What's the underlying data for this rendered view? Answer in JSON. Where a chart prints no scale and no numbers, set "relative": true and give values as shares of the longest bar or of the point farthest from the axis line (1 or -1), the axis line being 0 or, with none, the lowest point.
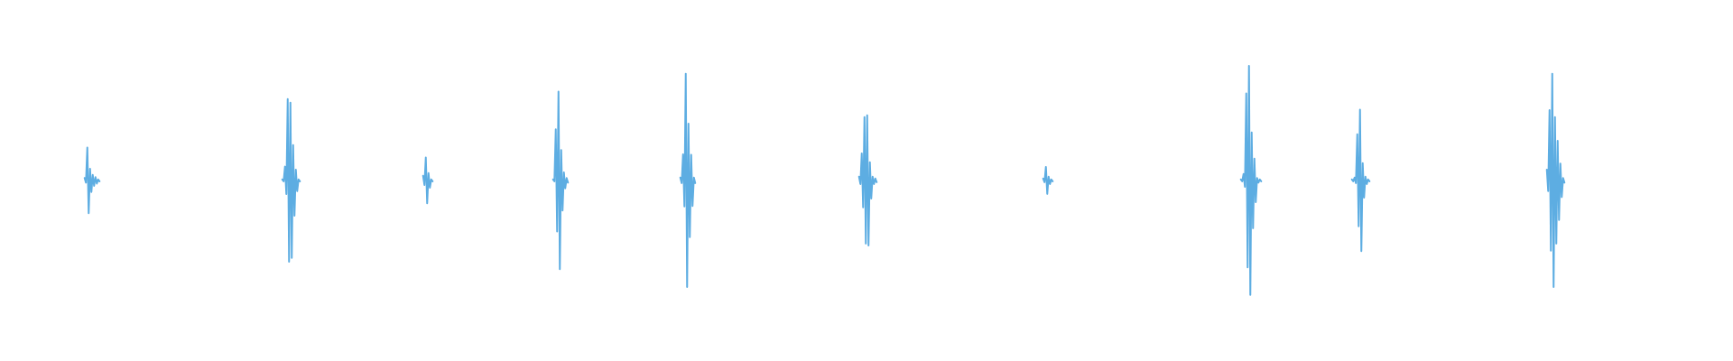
{
  "chart_data": {
    "type": "line",
    "relative": true,
    "color": "#5dade2",
    "categories": [
      null,
      null,
      null,
      null,
      null,
      null,
      null,
      null,
      null,
      null,
      null,
      null,
      null,
      null,
      null,
      null,
      null,
      null,
      null,
      null,
      null,
      null,
      null,
      null,
      null,
      null,
      null,
      null,
      null,
      null,
      null,
      null,
      null,
      null,
      null,
      null,
      null,
      null,
      null,
      null,
      null,
      null,
      null,
      null,
      null,
      null,
      null,
      null,
      null,
      null,
      null,
      null,
      null,
      null,
      null,
      null,
      null,
      null,
      null,
      null,
      null,
      null,
      null,
      null,
      null,
      null,
      null,
      null,
      null,
      null,
      null,
      null,
      null,
      null,
      null,
      null,
      null,
      null,
      null,
      null,
      null,
      null,
      null,
      null,
      null,
      null,
      null,
      null,
      null,
      null,
      null,
      null,
      null,
      null,
      null,
      null,
      null,
      null,
      null,
      null,
      null,
      null,
      null,
      null,
      null,
      null,
      null,
      null,
      null,
      null,
      null,
      null,
      null,
      null,
      null,
      null,
      null,
      null,
      null,
      null,
      null,
      null,
      null,
      null,
      null,
      null,
      null,
      null,
      null,
      null,
      null,
      null,
      null,
      null,
      null,
      null,
      null,
      null,
      null,
      null,
      null,
      null,
      null,
      null,
      null,
      null,
      null,
      null,
      null,
      null,
      null,
      null,
      null,
      null,
      null,
      null,
      null,
      null,
      null,
      null,
      null,
      null,
      null,
      null,
      null,
      null,
      null,
      null,
      null,
      null,
      null,
      null,
      null,
      null,
      null,
      null,
      null,
      null,
      null,
      null,
      null,
      null,
      null,
      null,
      null,
      null,
      null,
      null,
      null,
      null,
      null,
      null,
      null,
      null,
      null,
      null,
      null,
      null,
      null,
      null,
      null,
      null,
      null,
      null,
      null,
      null,
      null,
      null,
      null,
      null,
      null,
      null,
      null,
      null,
      null,
      null,
      null,
      null,
      null,
      null,
      null,
      null,
      null,
      null,
      null,
      null,
      null,
      null,
      null,
      null,
      null,
      null,
      null,
      null,
      null,
      null,
      null,
      null,
      null,
      null,
      null,
      null,
      null,
      null,
      null,
      null,
      null,
      null,
      null,
      null,
      null,
      null,
      null,
      null,
      null,
      null,
      null,
      null,
      null,
      null,
      null,
      null,
      null,
      null,
      null,
      null,
      null,
      null,
      null,
      null,
      null,
      null,
      null,
      null,
      null,
      null,
      null,
      null,
      null,
      null,
      null,
      null,
      null,
      null,
      null,
      null,
      null,
      null,
      null,
      null,
      null,
      null,
      null,
      null,
      null,
      null,
      null,
      null,
      null,
      null,
      null,
      null,
      null,
      null,
      null,
      null,
      null,
      null,
      null,
      null,
      null,
      null,
      null,
      null,
      null,
      null,
      null,
      null,
      null,
      null,
      null,
      null,
      null,
      null,
      null,
      null,
      null,
      null,
      null,
      null,
      null,
      null,
      null,
      null,
      null,
      null,
      null,
      null,
      null,
      null,
      null,
      null,
      null,
      null,
      null,
      null,
      null,
      null,
      null,
      null,
      null,
      null,
      null,
      null,
      null,
      null,
      null,
      null,
      null,
      null,
      null,
      null,
      null,
      null,
      null,
      null,
      null,
      null,
      null,
      null,
      null,
      null,
      null,
      null,
      null,
      null,
      null,
      null,
      null,
      null,
      null,
      null,
      null,
      null,
      null,
      null,
      null,
      null,
      null,
      null,
      null,
      null,
      null,
      null,
      null,
      null,
      null,
      null,
      null,
      null,
      null,
      null,
      null,
      null,
      null,
      null,
      null,
      null,
      null,
      null,
      null,
      null,
      null,
      null,
      null,
      null,
      null,
      null,
      null,
      null,
      null,
      null,
      null,
      null,
      null,
      null,
      null,
      null,
      null,
      null,
      null,
      null,
      null,
      null,
      null,
      null,
      null,
      null,
      null,
      null,
      null,
      null,
      null,
      null,
      null,
      null,
      null,
      null,
      null,
      null,
      null,
      null,
      null,
      null,
      null,
      null,
      null,
      null,
      null,
      null,
      null,
      null,
      null,
      null,
      null,
      null,
      null,
      null,
      null,
      null,
      null,
      null,
      null,
      null,
      null,
      null,
      null,
      null,
      null,
      null,
      null,
      null,
      null,
      null,
      null,
      null,
      null,
      null,
      null,
      null,
      null,
      null,
      null,
      null,
      null,
      null,
      null,
      null,
      null,
      null,
      null,
      null,
      null,
      null,
      null,
      null,
      null,
      null,
      null,
      null,
      null,
      null,
      null,
      null,
      null,
      null,
      null,
      null,
      null,
      null,
      null,
      null,
      null,
      null,
      null,
      null,
      null,
      null,
      null,
      null,
      null,
      null,
      null,
      null,
      null,
      null,
      null,
      null,
      null,
      null,
      null,
      null,
      null,
      null,
      null,
      null,
      null,
      null,
      null,
      null,
      null,
      null,
      null,
      null,
      null,
      null,
      null,
      null,
      null,
      null,
      null,
      null,
      null,
      null,
      null,
      null,
      null,
      null,
      null,
      null,
      null,
      null,
      null,
      null,
      null,
      null,
      null,
      null,
      null,
      null,
      null,
      null,
      null,
      null,
      null,
      null,
      null,
      null,
      null,
      null,
      null,
      null,
      null,
      null,
      null,
      null,
      null,
      null,
      null,
      null,
      null,
      null,
      null,
      null,
      null,
      null,
      null,
      null,
      null,
      null,
      null,
      null,
      null,
      null,
      null,
      null,
      null,
      null,
      null,
      null,
      null,
      null,
      null,
      null,
      null,
      null,
      null,
      null,
      null,
      null,
      null,
      null,
      null,
      null,
      null,
      null,
      null,
      null,
      null,
      null,
      null,
      null,
      null,
      null,
      null,
      null,
      null,
      null,
      null,
      null,
      null,
      null,
      null,
      null,
      null,
      null,
      null,
      null,
      null,
      null,
      null,
      null,
      null,
      null,
      null,
      null,
      null,
      null,
      null,
      null,
      null,
      null,
      null,
      null,
      null,
      null,
      null,
      null,
      null,
      null,
      null,
      null,
      null,
      null,
      null,
      null,
      null,
      null,
      null,
      null,
      null,
      null,
      null,
      null,
      null,
      null,
      null,
      null,
      null,
      null,
      null,
      null,
      null,
      null,
      null,
      null,
      null,
      null,
      null,
      null,
      null,
      null,
      null,
      null,
      null,
      null,
      null,
      null,
      null,
      null,
      null,
      null,
      null,
      null,
      null,
      null,
      null,
      null,
      null,
      null,
      null,
      null,
      null,
      null,
      null,
      null,
      null,
      null,
      null,
      null,
      null,
      null,
      null,
      null,
      null,
      null,
      null,
      null,
      null,
      null,
      null,
      null,
      null,
      null,
      null,
      null,
      null,
      null,
      null,
      null,
      null,
      null,
      null,
      null,
      null,
      null,
      null,
      null,
      null,
      null,
      null,
      null,
      null,
      null,
      null,
      null,
      null,
      null,
      null,
      null,
      null,
      null,
      null,
      null,
      null,
      null,
      null,
      null,
      null,
      null,
      null,
      null,
      null,
      null,
      null,
      null,
      null,
      null,
      null,
      null,
      null,
      null,
      null,
      null,
      null,
      null,
      null,
      null,
      null,
      null,
      null,
      null,
      null,
      null,
      null,
      null,
      null,
      null,
      null,
      null,
      null,
      null,
      null,
      null,
      null,
      null,
      null,
      null,
      null,
      null,
      null,
      null,
      null,
      null,
      null,
      null,
      null,
      null,
      null,
      null,
      null,
      null,
      null,
      null,
      null,
      null,
      null,
      null,
      null,
      null,
      null,
      null,
      null,
      null,
      null,
      null,
      null,
      null,
      null,
      null,
      null,
      null,
      null,
      null,
      null,
      null,
      null,
      null,
      null,
      null,
      null,
      null,
      null,
      null,
      null,
      null,
      null,
      null,
      null,
      null,
      null,
      null,
      null,
      null,
      null,
      null,
      null,
      null,
      null,
      null,
      null,
      null,
      null,
      null,
      null,
      null,
      null,
      null,
      null,
      null,
      null,
      null,
      null,
      null,
      null,
      null,
      null,
      null,
      null,
      null,
      null,
      null,
      null,
      null,
      null,
      null,
      null,
      null,
      null,
      null,
      null,
      null,
      null,
      null,
      null,
      null,
      null,
      null,
      null,
      null,
      null,
      null,
      null,
      null,
      null,
      null,
      null,
      null,
      null,
      null,
      null,
      null,
      null,
      null,
      null,
      null,
      null,
      null,
      null,
      null,
      null,
      null,
      null,
      null,
      null,
      null,
      null,
      null,
      null,
      null,
      null,
      null,
      null,
      null,
      null,
      null,
      null,
      null,
      null,
      null,
      null,
      null,
      null,
      null,
      null,
      null,
      null,
      null,
      null,
      null,
      null,
      null,
      null,
      null,
      null,
      null,
      null,
      null,
      null,
      null,
      null,
      null,
      null,
      null,
      null,
      null,
      null,
      null,
      null,
      null,
      null,
      null,
      null,
      null,
      null,
      null,
      null,
      null,
      null,
      null,
      null,
      null,
      null,
      null,
      null,
      null,
      null,
      null,
      null,
      null,
      null,
      null,
      null,
      null,
      null,
      null,
      null,
      null,
      null,
      null,
      null,
      null,
      null,
      null,
      null,
      null,
      null,
      null,
      null,
      null,
      null,
      null,
      null,
      null,
      null,
      null,
      null,
      null,
      null,
      null,
      null,
      null,
      null,
      null,
      null,
      null,
      null,
      null,
      null,
      null,
      null,
      null,
      null,
      null,
      null,
      null,
      null,
      null,
      null,
      null,
      null,
      null,
      null,
      null,
      null,
      null,
      null,
      null,
      null,
      null,
      null,
      null,
      null,
      null,
      null,
      null,
      null,
      null,
      null,
      null,
      null,
      null,
      null,
      null,
      null,
      null,
      null,
      null,
      null,
      null,
      null,
      null,
      null,
      null,
      null,
      null,
      null,
      null,
      null,
      null,
      null,
      null,
      null,
      null,
      null,
      null,
      null,
      null,
      null,
      null,
      null,
      null,
      null,
      null,
      null,
      null,
      null,
      null,
      null,
      null,
      null,
      null,
      null,
      null,
      null,
      null,
      null,
      null,
      null,
      null,
      null,
      null,
      null,
      null,
      null,
      null,
      null,
      null,
      null,
      null,
      null,
      null,
      null,
      null,
      null,
      null,
      null,
      null,
      null,
      null,
      null,
      null,
      null,
      null,
      null,
      null,
      null,
      null,
      null,
      null,
      null,
      null,
      null,
      null,
      null,
      null,
      null,
      null,
      null,
      null,
      null,
      null,
      null,
      null,
      null,
      null,
      null,
      null,
      null,
      null,
      null,
      null,
      null,
      null,
      null,
      null,
      null,
      null,
      null,
      null,
      null,
      null,
      null,
      null,
      null,
      null,
      null,
      null,
      null,
      null,
      null,
      null,
      null,
      null,
      null,
      null,
      null,
      null,
      null,
      null,
      null,
      null,
      null,
      null,
      null,
      null,
      null,
      null,
      null,
      null,
      null,
      null,
      null,
      null,
      null,
      null,
      null,
      null,
      null,
      null,
      null,
      null,
      null,
      null,
      null,
      null,
      null,
      null,
      null,
      null,
      null,
      null,
      null,
      null,
      null,
      null,
      null,
      null,
      null,
      null,
      null,
      null,
      null,
      null,
      null,
      null,
      null,
      null,
      null,
      null,
      null,
      null,
      null,
      null,
      null,
      null,
      null,
      null,
      null,
      null
    ],
    "values": [
      null,
      null,
      null,
      null,
      null,
      null,
      null,
      null,
      null,
      null,
      null,
      null,
      null,
      null,
      null,
      null,
      null,
      null,
      null,
      null,
      null,
      null,
      null,
      null,
      null,
      null,
      null,
      null,
      null,
      null,
      null,
      null,
      null,
      null,
      null,
      null,
      null,
      null,
      null,
      null,
      null,
      null,
      null,
      null,
      null,
      null,
      null,
      null,
      null,
      null,
      null,
      null,
      null,
      null,
      null,
      null,
      null,
      null,
      null,
      null,
      null,
      null,
      0.51,
      0.49,
      0.643,
      0.357,
      0.551,
      0.449,
      0.524,
      0.476,
      0.514,
      0.486,
      0.504,
      0.496,
      null,
      null,
      null,
      null,
      null,
      null,
      null,
      null,
      null,
      null,
      null,
      null,
      null,
      null,
      null,
      null,
      null,
      null,
      null,
      null,
      null,
      null,
      null,
      null,
      null,
      null,
      null,
      null,
      null,
      null,
      null,
      null,
      null,
      null,
      null,
      null,
      null,
      null,
      null,
      null,
      null,
      null,
      null,
      null,
      null,
      null,
      null,
      null,
      null,
      null,
      null,
      null,
      null,
      null,
      null,
      null,
      null,
      null,
      null,
      null,
      null,
      null,
      null,
      null,
      null,
      null,
      null,
      null,
      null,
      null,
      null,
      null,
      null,
      null,
      null,
      null,
      null,
      null,
      null,
      null,
      null,
      null,
      null,
      null,
      null,
      null,
      null,
      null,
      null,
      null,
      null,
      null,
      null,
      null,
      null,
      null,
      null,
      null,
      null,
      null,
      null,
      null,
      null,
      null,
      null,
      null,
      null,
      null,
      null,
      null,
      null,
      null,
      null,
      null,
      null,
      null,
      null,
      null,
      null,
      null,
      null,
      null,
      null,
      null,
      null,
      null,
      null,
      null,
      null,
      null,
      null,
      null,
      null,
      null,
      0.504,
      0.496,
      0.56,
      0.44,
      0.855,
      0.145,
      0.839,
      0.161,
      0.654,
      0.346,
      0.547,
      0.453,
      0.504,
      0.496,
      null,
      null,
      null,
      null,
      null,
      null,
      null,
      null,
      null,
      null,
      null,
      null,
      null,
      null,
      null,
      null,
      null,
      null,
      null,
      null,
      null,
      null,
      null,
      null,
      null,
      null,
      null,
      null,
      null,
      null,
      null,
      null,
      null,
      null,
      null,
      null,
      null,
      null,
      null,
      null,
      null,
      null,
      null,
      null,
      null,
      null,
      null,
      null,
      null,
      null,
      null,
      null,
      null,
      null,
      null,
      null,
      null,
      null,
      null,
      null,
      null,
      null,
      null,
      null,
      null,
      null,
      null,
      null,
      null,
      null,
      null,
      null,
      null,
      null,
      null,
      null,
      null,
      null,
      null,
      null,
      null,
      null,
      null,
      null,
      null,
      null,
      null,
      null,
      null,
      null,
      0.52,
      0.48,
      0.6,
      0.4,
      0.532,
      0.468,
      0.504,
      0.496,
      null,
      null,
      null,
      null,
      null,
      null,
      null,
      null,
      null,
      null,
      null,
      null,
      null,
      null,
      null,
      null,
      null,
      null,
      null,
      null,
      null,
      null,
      null,
      null,
      null,
      null,
      null,
      null,
      null,
      null,
      null,
      null,
      null,
      null,
      null,
      null,
      null,
      null,
      null,
      null,
      null,
      null,
      null,
      null,
      null,
      null,
      null,
      null,
      null,
      null,
      null,
      null,
      null,
      null,
      null,
      null,
      null,
      null,
      null,
      null,
      null,
      null,
      null,
      null,
      null,
      null,
      null,
      null,
      null,
      null,
      null,
      null,
      null,
      null,
      null,
      null,
      null,
      null,
      null,
      null,
      null,
      null,
      null,
      null,
      null,
      null,
      null,
      null,
      0.504,
      0.496,
      0.723,
      0.277,
      0.888,
      0.112,
      0.632,
      0.368,
      0.535,
      0.465,
      0.51,
      0.49,
      null,
      null,
      null,
      null,
      null,
      null,
      null,
      null,
      null,
      null,
      null,
      null,
      null,
      null,
      null,
      null,
      null,
      null,
      null,
      null,
      null,
      null,
      null,
      null,
      null,
      null,
      null,
      null,
      null,
      null,
      null,
      null,
      null,
      null,
      null,
      null,
      null,
      null,
      null,
      null,
      null,
      null,
      null,
      null,
      null,
      null,
      null,
      null,
      null,
      null,
      null,
      null,
      null,
      null,
      null,
      null,
      null,
      null,
      null,
      null,
      null,
      null,
      null,
      null,
      null,
      null,
      null,
      null,
      null,
      null,
      null,
      null,
      null,
      null,
      null,
      null,
      null,
      null,
      null,
      null,
      null,
      null,
      0.512,
      0.488,
      0.614,
      0.386,
      0.966,
      0.034,
      0.748,
      0.252,
      0.612,
      0.388,
      0.512,
      0.488,
      null,
      null,
      null,
      null,
      null,
      null,
      null,
      null,
      null,
      null,
      null,
      null,
      null,
      null,
      null,
      null,
      null,
      null,
      null,
      null,
      null,
      null,
      null,
      null,
      null,
      null,
      null,
      null,
      null,
      null,
      null,
      null,
      null,
      null,
      null,
      null,
      null,
      null,
      null,
      null,
      null,
      null,
      null,
      null,
      null,
      null,
      null,
      null,
      null,
      null,
      null,
      null,
      null,
      null,
      null,
      null,
      null,
      null,
      null,
      null,
      null,
      null,
      null,
      null,
      null,
      null,
      null,
      null,
      null,
      null,
      null,
      null,
      null,
      null,
      null,
      null,
      null,
      null,
      null,
      null,
      null,
      null,
      null,
      null,
      null,
      null,
      null,
      null,
      null,
      null,
      null,
      null,
      null,
      null,
      null,
      null,
      null,
      null,
      null,
      null,
      null,
      null,
      null,
      null,
      null,
      null,
      null,
      null,
      null,
      null,
      null,
      null,
      null,
      null,
      null,
      null,
      null,
      null,
      null,
      null,
      0.516,
      0.484,
      0.618,
      0.382,
      0.776,
      0.224,
      0.784,
      0.216,
      0.579,
      0.421,
      0.516,
      0.484,
      0.508,
      0.492,
      null,
      null,
      null,
      null,
      null,
      null,
      null,
      null,
      null,
      null,
      null,
      null,
      null,
      null,
      null,
      null,
      null,
      null,
      null,
      null,
      null,
      null,
      null,
      null,
      null,
      null,
      null,
      null,
      null,
      null,
      null,
      null,
      null,
      null,
      null,
      null,
      null,
      null,
      null,
      null,
      null,
      null,
      null,
      null,
      null,
      null,
      null,
      null,
      null,
      null,
      null,
      null,
      null,
      null,
      null,
      null,
      null,
      null,
      null,
      null,
      null,
      null,
      null,
      null,
      null,
      null,
      null,
      null,
      null,
      null,
      null,
      null,
      null,
      null,
      null,
      null,
      null,
      null,
      null,
      null,
      null,
      null,
      null,
      null,
      null,
      null,
      null,
      null,
      null,
      null,
      null,
      null,
      null,
      null,
      null,
      null,
      null,
      null,
      null,
      null,
      null,
      null,
      null,
      null,
      null,
      null,
      null,
      null,
      null,
      null,
      null,
      null,
      null,
      null,
      null,
      null,
      null,
      null,
      null,
      null,
      null,
      null,
      0.508,
      0.492,
      0.559,
      0.441,
      0.516,
      0.484,
      0.504,
      0.496,
      null,
      null,
      null,
      null,
      null,
      null,
      null,
      null,
      null,
      null,
      null,
      null,
      null,
      null,
      null,
      null,
      null,
      null,
      null,
      null,
      null,
      null,
      null,
      null,
      null,
      null,
      null,
      null,
      null,
      null,
      null,
      null,
      null,
      null,
      null,
      null,
      null,
      null,
      null,
      null,
      null,
      null,
      null,
      null,
      null,
      null,
      null,
      null,
      null,
      null,
      null,
      null,
      null,
      null,
      null,
      null,
      null,
      null,
      null,
      null,
      null,
      null,
      null,
      null,
      null,
      null,
      null,
      null,
      null,
      null,
      null,
      null,
      null,
      null,
      null,
      null,
      null,
      null,
      null,
      null,
      null,
      null,
      null,
      null,
      null,
      null,
      null,
      null,
      null,
      null,
      null,
      null,
      null,
      null,
      null,
      null,
      null,
      null,
      null,
      null,
      null,
      null,
      null,
      null,
      null,
      null,
      null,
      null,
      null,
      null,
      null,
      null,
      null,
      null,
      null,
      null,
      null,
      null,
      null,
      null,
      null,
      null,
      null,
      null,
      null,
      null,
      null,
      null,
      null,
      null,
      null,
      null,
      null,
      null,
      null,
      null,
      null,
      null,
      0.504,
      0.496,
      0.528,
      0.472,
      0.88,
      0.12,
      1,
      0,
      0.709,
      0.291,
      0.595,
      0.405,
      0.51,
      0.49,
      0.504,
      0.496,
      null,
      null,
      null,
      null,
      null,
      null,
      null,
      null,
      null,
      null,
      null,
      null,
      null,
      null,
      null,
      null,
      null,
      null,
      null,
      null,
      null,
      null,
      null,
      null,
      null,
      null,
      null,
      null,
      null,
      null,
      null,
      null,
      null,
      null,
      null,
      null,
      null,
      null,
      null,
      null,
      null,
      null,
      null,
      null,
      null,
      null,
      null,
      null,
      null,
      null,
      null,
      null,
      null,
      null,
      null,
      null,
      null,
      null,
      null,
      null,
      null,
      null,
      null,
      null,
      null,
      null,
      0.504,
      0.496,
      0.512,
      0.488,
      0.701,
      0.299,
      0.809,
      0.191,
      0.575,
      0.425,
      0.516,
      0.484,
      0.504,
      0.496,
      null,
      null,
      null,
      null,
      null,
      null,
      null,
      null,
      null,
      null,
      null,
      null,
      null,
      null,
      null,
      null,
      null,
      null,
      null,
      null,
      null,
      null,
      null,
      null,
      null,
      null,
      null,
      null,
      null,
      null,
      null,
      null,
      null,
      null,
      null,
      null,
      null,
      null,
      null,
      null,
      null,
      null,
      null,
      null,
      null,
      null,
      null,
      null,
      null,
      null,
      null,
      null,
      null,
      null,
      null,
      null,
      null,
      null,
      null,
      null,
      null,
      null,
      null,
      null,
      null,
      null,
      null,
      null,
      null,
      null,
      null,
      null,
      null,
      null,
      null,
      null,
      null,
      null,
      null,
      null,
      null,
      null,
      null,
      null,
      null,
      null,
      null,
      null,
      null,
      null,
      null,
      null,
      null,
      null,
      null,
      null,
      null,
      null,
      null,
      null,
      null,
      null,
      null,
      null,
      null,
      null,
      null,
      null,
      null,
      null,
      null,
      null,
      null,
      null,
      null,
      null,
      null,
      null,
      null,
      null,
      null,
      null,
      null,
      null,
      null,
      null,
      null,
      null,
      null,
      null,
      0.547,
      0.453,
      0.807,
      0.193,
      0.966,
      0.034,
      0.776,
      0.224,
      0.673,
      0.327,
      0.573,
      0.427,
      0.51,
      0.49,
      null,
      null,
      null,
      null,
      null,
      null,
      null,
      null,
      null,
      null,
      null,
      null,
      null,
      null,
      null,
      null,
      null,
      null,
      null,
      null,
      null,
      null,
      null,
      null,
      null,
      null,
      null,
      null,
      null,
      null,
      null,
      null,
      null,
      null,
      null,
      null,
      null,
      null,
      null,
      null,
      null,
      null,
      null,
      null,
      null,
      null,
      null,
      null,
      null,
      null,
      null,
      null,
      null,
      null,
      null,
      null,
      null,
      null,
      null,
      null,
      null,
      null,
      null,
      null,
      null,
      null,
      null,
      null,
      null,
      null,
      null,
      null,
      null,
      null,
      null,
      null,
      null,
      null,
      null,
      null,
      null,
      null,
      null,
      null,
      null,
      null,
      null,
      null,
      null,
      null,
      null,
      null,
      null,
      null,
      null,
      null,
      null,
      null,
      null,
      null,
      null,
      null,
      null,
      null,
      null,
      null,
      null,
      null,
      null,
      null,
      null,
      null,
      null,
      null,
      null,
      null,
      null,
      null,
      null,
      null,
      null,
      null,
      null,
      null
    ]
  }
}
